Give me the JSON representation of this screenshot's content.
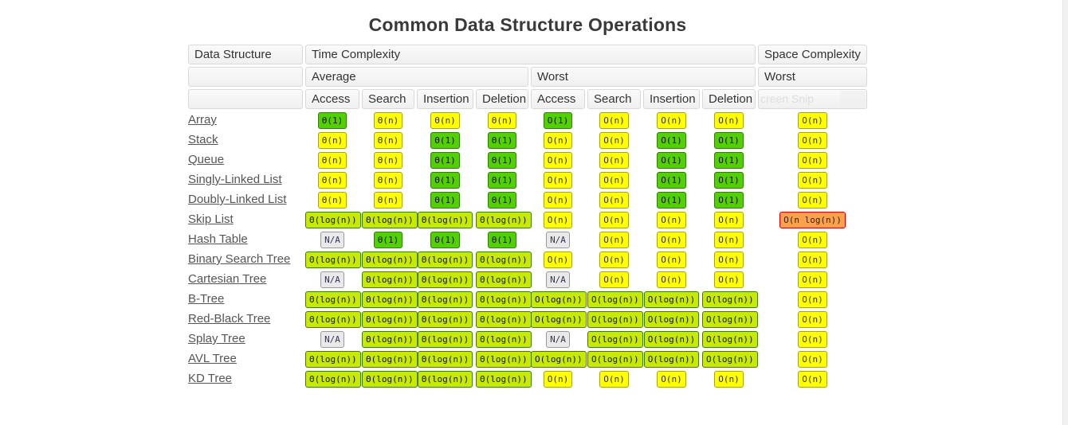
{
  "page": {
    "title": "Common Data Structure Operations"
  },
  "table": {
    "header": {
      "data_structure": "Data Structure",
      "time_complexity": "Time Complexity",
      "space_complexity": "Space Complexity",
      "average": "Average",
      "worst": "Worst",
      "space_worst": "Worst",
      "operations": [
        "Access",
        "Search",
        "Insertion",
        "Deletion"
      ],
      "snip_artifact": "creen Snip"
    },
    "rows": [
      {
        "name": "Array",
        "avg": [
          {
            "v": "Θ(1)",
            "c": "green"
          },
          {
            "v": "Θ(n)",
            "c": "yellow"
          },
          {
            "v": "Θ(n)",
            "c": "yellow"
          },
          {
            "v": "Θ(n)",
            "c": "yellow"
          }
        ],
        "worst": [
          {
            "v": "O(1)",
            "c": "green"
          },
          {
            "v": "O(n)",
            "c": "yellow"
          },
          {
            "v": "O(n)",
            "c": "yellow"
          },
          {
            "v": "O(n)",
            "c": "yellow"
          }
        ],
        "space": {
          "v": "O(n)",
          "c": "yellow"
        }
      },
      {
        "name": "Stack",
        "avg": [
          {
            "v": "Θ(n)",
            "c": "yellow"
          },
          {
            "v": "Θ(n)",
            "c": "yellow"
          },
          {
            "v": "Θ(1)",
            "c": "green"
          },
          {
            "v": "Θ(1)",
            "c": "green"
          }
        ],
        "worst": [
          {
            "v": "O(n)",
            "c": "yellow"
          },
          {
            "v": "O(n)",
            "c": "yellow"
          },
          {
            "v": "O(1)",
            "c": "green"
          },
          {
            "v": "O(1)",
            "c": "green"
          }
        ],
        "space": {
          "v": "O(n)",
          "c": "yellow"
        }
      },
      {
        "name": "Queue",
        "avg": [
          {
            "v": "Θ(n)",
            "c": "yellow"
          },
          {
            "v": "Θ(n)",
            "c": "yellow"
          },
          {
            "v": "Θ(1)",
            "c": "green"
          },
          {
            "v": "Θ(1)",
            "c": "green"
          }
        ],
        "worst": [
          {
            "v": "O(n)",
            "c": "yellow"
          },
          {
            "v": "O(n)",
            "c": "yellow"
          },
          {
            "v": "O(1)",
            "c": "green"
          },
          {
            "v": "O(1)",
            "c": "green"
          }
        ],
        "space": {
          "v": "O(n)",
          "c": "yellow"
        }
      },
      {
        "name": "Singly-Linked List",
        "avg": [
          {
            "v": "Θ(n)",
            "c": "yellow"
          },
          {
            "v": "Θ(n)",
            "c": "yellow"
          },
          {
            "v": "Θ(1)",
            "c": "green"
          },
          {
            "v": "Θ(1)",
            "c": "green"
          }
        ],
        "worst": [
          {
            "v": "O(n)",
            "c": "yellow"
          },
          {
            "v": "O(n)",
            "c": "yellow"
          },
          {
            "v": "O(1)",
            "c": "green"
          },
          {
            "v": "O(1)",
            "c": "green"
          }
        ],
        "space": {
          "v": "O(n)",
          "c": "yellow"
        }
      },
      {
        "name": "Doubly-Linked List",
        "avg": [
          {
            "v": "Θ(n)",
            "c": "yellow"
          },
          {
            "v": "Θ(n)",
            "c": "yellow"
          },
          {
            "v": "Θ(1)",
            "c": "green"
          },
          {
            "v": "Θ(1)",
            "c": "green"
          }
        ],
        "worst": [
          {
            "v": "O(n)",
            "c": "yellow"
          },
          {
            "v": "O(n)",
            "c": "yellow"
          },
          {
            "v": "O(1)",
            "c": "green"
          },
          {
            "v": "O(1)",
            "c": "green"
          }
        ],
        "space": {
          "v": "O(n)",
          "c": "yellow"
        }
      },
      {
        "name": "Skip List",
        "avg": [
          {
            "v": "Θ(log(n))",
            "c": "yellowgreen"
          },
          {
            "v": "Θ(log(n))",
            "c": "yellowgreen"
          },
          {
            "v": "Θ(log(n))",
            "c": "yellowgreen"
          },
          {
            "v": "Θ(log(n))",
            "c": "yellowgreen"
          }
        ],
        "worst": [
          {
            "v": "O(n)",
            "c": "yellow"
          },
          {
            "v": "O(n)",
            "c": "yellow"
          },
          {
            "v": "O(n)",
            "c": "yellow"
          },
          {
            "v": "O(n)",
            "c": "yellow"
          }
        ],
        "space": {
          "v": "O(n log(n))",
          "c": "orange"
        }
      },
      {
        "name": "Hash Table",
        "avg": [
          {
            "v": "N/A",
            "c": "gray"
          },
          {
            "v": "Θ(1)",
            "c": "green"
          },
          {
            "v": "Θ(1)",
            "c": "green"
          },
          {
            "v": "Θ(1)",
            "c": "green"
          }
        ],
        "worst": [
          {
            "v": "N/A",
            "c": "gray"
          },
          {
            "v": "O(n)",
            "c": "yellow"
          },
          {
            "v": "O(n)",
            "c": "yellow"
          },
          {
            "v": "O(n)",
            "c": "yellow"
          }
        ],
        "space": {
          "v": "O(n)",
          "c": "yellow"
        }
      },
      {
        "name": "Binary Search Tree",
        "avg": [
          {
            "v": "Θ(log(n))",
            "c": "yellowgreen"
          },
          {
            "v": "Θ(log(n))",
            "c": "yellowgreen"
          },
          {
            "v": "Θ(log(n))",
            "c": "yellowgreen"
          },
          {
            "v": "Θ(log(n))",
            "c": "yellowgreen"
          }
        ],
        "worst": [
          {
            "v": "O(n)",
            "c": "yellow"
          },
          {
            "v": "O(n)",
            "c": "yellow"
          },
          {
            "v": "O(n)",
            "c": "yellow"
          },
          {
            "v": "O(n)",
            "c": "yellow"
          }
        ],
        "space": {
          "v": "O(n)",
          "c": "yellow"
        }
      },
      {
        "name": "Cartesian Tree",
        "avg": [
          {
            "v": "N/A",
            "c": "gray"
          },
          {
            "v": "Θ(log(n))",
            "c": "yellowgreen"
          },
          {
            "v": "Θ(log(n))",
            "c": "yellowgreen"
          },
          {
            "v": "Θ(log(n))",
            "c": "yellowgreen"
          }
        ],
        "worst": [
          {
            "v": "N/A",
            "c": "gray"
          },
          {
            "v": "O(n)",
            "c": "yellow"
          },
          {
            "v": "O(n)",
            "c": "yellow"
          },
          {
            "v": "O(n)",
            "c": "yellow"
          }
        ],
        "space": {
          "v": "O(n)",
          "c": "yellow"
        }
      },
      {
        "name": "B-Tree",
        "avg": [
          {
            "v": "Θ(log(n))",
            "c": "yellowgreen"
          },
          {
            "v": "Θ(log(n))",
            "c": "yellowgreen"
          },
          {
            "v": "Θ(log(n))",
            "c": "yellowgreen"
          },
          {
            "v": "Θ(log(n))",
            "c": "yellowgreen"
          }
        ],
        "worst": [
          {
            "v": "O(log(n))",
            "c": "yellowgreen"
          },
          {
            "v": "O(log(n))",
            "c": "yellowgreen"
          },
          {
            "v": "O(log(n))",
            "c": "yellowgreen"
          },
          {
            "v": "O(log(n))",
            "c": "yellowgreen"
          }
        ],
        "space": {
          "v": "O(n)",
          "c": "yellow"
        }
      },
      {
        "name": "Red-Black Tree",
        "avg": [
          {
            "v": "Θ(log(n))",
            "c": "yellowgreen"
          },
          {
            "v": "Θ(log(n))",
            "c": "yellowgreen"
          },
          {
            "v": "Θ(log(n))",
            "c": "yellowgreen"
          },
          {
            "v": "Θ(log(n))",
            "c": "yellowgreen"
          }
        ],
        "worst": [
          {
            "v": "O(log(n))",
            "c": "yellowgreen"
          },
          {
            "v": "O(log(n))",
            "c": "yellowgreen"
          },
          {
            "v": "O(log(n))",
            "c": "yellowgreen"
          },
          {
            "v": "O(log(n))",
            "c": "yellowgreen"
          }
        ],
        "space": {
          "v": "O(n)",
          "c": "yellow"
        }
      },
      {
        "name": "Splay Tree",
        "avg": [
          {
            "v": "N/A",
            "c": "gray"
          },
          {
            "v": "Θ(log(n))",
            "c": "yellowgreen"
          },
          {
            "v": "Θ(log(n))",
            "c": "yellowgreen"
          },
          {
            "v": "Θ(log(n))",
            "c": "yellowgreen"
          }
        ],
        "worst": [
          {
            "v": "N/A",
            "c": "gray"
          },
          {
            "v": "O(log(n))",
            "c": "yellowgreen"
          },
          {
            "v": "O(log(n))",
            "c": "yellowgreen"
          },
          {
            "v": "O(log(n))",
            "c": "yellowgreen"
          }
        ],
        "space": {
          "v": "O(n)",
          "c": "yellow"
        }
      },
      {
        "name": "AVL Tree",
        "avg": [
          {
            "v": "Θ(log(n))",
            "c": "yellowgreen"
          },
          {
            "v": "Θ(log(n))",
            "c": "yellowgreen"
          },
          {
            "v": "Θ(log(n))",
            "c": "yellowgreen"
          },
          {
            "v": "Θ(log(n))",
            "c": "yellowgreen"
          }
        ],
        "worst": [
          {
            "v": "O(log(n))",
            "c": "yellowgreen"
          },
          {
            "v": "O(log(n))",
            "c": "yellowgreen"
          },
          {
            "v": "O(log(n))",
            "c": "yellowgreen"
          },
          {
            "v": "O(log(n))",
            "c": "yellowgreen"
          }
        ],
        "space": {
          "v": "O(n)",
          "c": "yellow"
        }
      },
      {
        "name": "KD Tree",
        "avg": [
          {
            "v": "Θ(log(n))",
            "c": "yellowgreen"
          },
          {
            "v": "Θ(log(n))",
            "c": "yellowgreen"
          },
          {
            "v": "Θ(log(n))",
            "c": "yellowgreen"
          },
          {
            "v": "Θ(log(n))",
            "c": "yellowgreen"
          }
        ],
        "worst": [
          {
            "v": "O(n)",
            "c": "yellow"
          },
          {
            "v": "O(n)",
            "c": "yellow"
          },
          {
            "v": "O(n)",
            "c": "yellow"
          },
          {
            "v": "O(n)",
            "c": "yellow"
          }
        ],
        "space": {
          "v": "O(n)",
          "c": "yellow"
        }
      }
    ]
  },
  "colors": {
    "green": "#53d000",
    "yellowgreen": "#c8ea00",
    "yellow": "#ffff00",
    "orange": "#faa24b",
    "gray": "#e9e9e9"
  }
}
